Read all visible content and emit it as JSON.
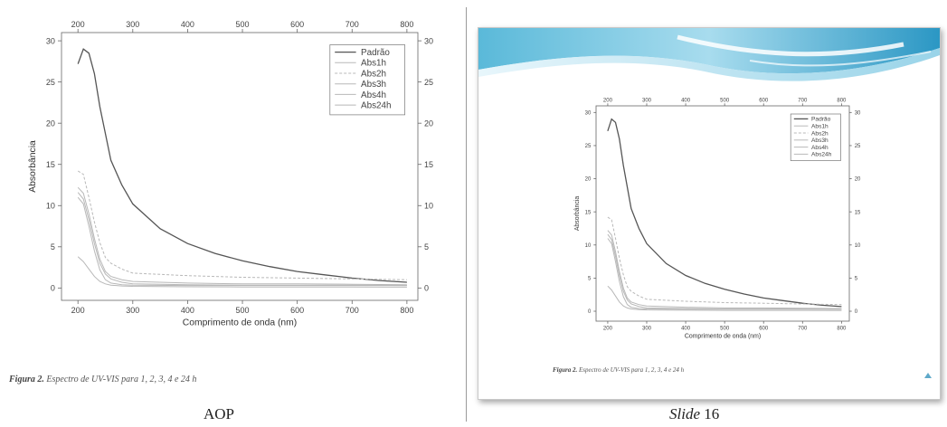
{
  "captions": {
    "left": {
      "figure_label": "Figura 2.",
      "text": "Espectro de UV-VIS para 1, 2, 3, 4 e 24 h"
    },
    "right": {
      "figure_label": "Figura 2.",
      "text": "Espectro de UV-VIS para 1, 2, 3, 4 e 24 h"
    }
  },
  "labels": {
    "left_panel": "AOP",
    "right_panel_italic": "Slide",
    "right_panel_number": "16"
  },
  "colors": {
    "slide_header_light": "#d6f0f8",
    "slide_header_mid": "#6cc3df",
    "slide_header_dark": "#1d8fbd",
    "series_main": "#555555",
    "series_light": "#b8b8b8"
  },
  "chart_data": [
    {
      "type": "line",
      "xlabel": "Comprimento de onda (nm)",
      "ylabel": "Absorbância",
      "xlim": [
        170,
        820
      ],
      "ylim": [
        -1.5,
        31
      ],
      "xticks": [
        200,
        300,
        400,
        500,
        600,
        700,
        800
      ],
      "yticks": [
        0,
        5,
        10,
        15,
        20,
        25,
        30
      ],
      "legend_position": "top-right",
      "series": [
        {
          "name": "Padrão",
          "x": [
            200,
            210,
            220,
            230,
            240,
            260,
            280,
            300,
            350,
            400,
            450,
            500,
            550,
            600,
            650,
            700,
            750,
            800
          ],
          "y": [
            27.2,
            29.0,
            28.5,
            26.0,
            22.0,
            15.5,
            12.5,
            10.2,
            7.2,
            5.4,
            4.2,
            3.3,
            2.6,
            2.0,
            1.6,
            1.2,
            0.9,
            0.7
          ]
        },
        {
          "name": "Abs1h",
          "x": [
            200,
            210,
            220,
            230,
            240,
            250,
            260,
            280,
            300,
            400,
            500,
            600,
            700,
            800
          ],
          "y": [
            3.8,
            3.2,
            2.3,
            1.4,
            0.8,
            0.5,
            0.35,
            0.25,
            0.2,
            0.15,
            0.12,
            0.12,
            0.12,
            0.1
          ]
        },
        {
          "name": "Abs2h",
          "x": [
            200,
            210,
            220,
            230,
            240,
            250,
            260,
            280,
            300,
            400,
            500,
            600,
            700,
            800
          ],
          "y": [
            14.2,
            13.8,
            11.0,
            8.0,
            5.5,
            3.7,
            3.0,
            2.3,
            1.8,
            1.5,
            1.3,
            1.2,
            1.1,
            1.0
          ]
        },
        {
          "name": "Abs3h",
          "x": [
            200,
            210,
            220,
            230,
            240,
            250,
            260,
            280,
            300,
            400,
            500,
            600,
            700,
            800
          ],
          "y": [
            12.2,
            11.5,
            9.0,
            6.0,
            3.5,
            2.0,
            1.4,
            1.0,
            0.8,
            0.6,
            0.5,
            0.5,
            0.45,
            0.4
          ]
        },
        {
          "name": "Abs4h",
          "x": [
            200,
            210,
            220,
            230,
            240,
            250,
            260,
            280,
            300,
            400,
            500,
            600,
            700,
            800
          ],
          "y": [
            11.6,
            10.8,
            8.3,
            5.4,
            3.0,
            1.7,
            1.1,
            0.7,
            0.5,
            0.4,
            0.35,
            0.35,
            0.35,
            0.3
          ]
        },
        {
          "name": "Abs24h",
          "x": [
            200,
            210,
            220,
            230,
            240,
            250,
            260,
            280,
            300,
            400,
            500,
            600,
            700,
            800
          ],
          "y": [
            11.0,
            10.2,
            7.5,
            4.5,
            2.2,
            1.0,
            0.6,
            0.4,
            0.35,
            0.3,
            0.3,
            0.3,
            0.3,
            0.3
          ]
        }
      ]
    },
    {
      "type": "line",
      "xlabel": "Comprimento de onda (nm)",
      "ylabel": "Absorbância",
      "xlim": [
        170,
        820
      ],
      "ylim": [
        -1.5,
        31
      ],
      "xticks": [
        200,
        300,
        400,
        500,
        600,
        700,
        800
      ],
      "yticks": [
        0,
        5,
        10,
        15,
        20,
        25,
        30
      ],
      "legend_position": "top-right",
      "series": [
        {
          "name": "Padrão",
          "x": [
            200,
            210,
            220,
            230,
            240,
            260,
            280,
            300,
            350,
            400,
            450,
            500,
            550,
            600,
            650,
            700,
            750,
            800
          ],
          "y": [
            27.2,
            29.0,
            28.5,
            26.0,
            22.0,
            15.5,
            12.5,
            10.2,
            7.2,
            5.4,
            4.2,
            3.3,
            2.6,
            2.0,
            1.6,
            1.2,
            0.9,
            0.7
          ]
        },
        {
          "name": "Abs1h",
          "x": [
            200,
            210,
            220,
            230,
            240,
            250,
            260,
            280,
            300,
            400,
            500,
            600,
            700,
            800
          ],
          "y": [
            3.8,
            3.2,
            2.3,
            1.4,
            0.8,
            0.5,
            0.35,
            0.25,
            0.2,
            0.15,
            0.12,
            0.12,
            0.12,
            0.1
          ]
        },
        {
          "name": "Abs2h",
          "x": [
            200,
            210,
            220,
            230,
            240,
            250,
            260,
            280,
            300,
            400,
            500,
            600,
            700,
            800
          ],
          "y": [
            14.2,
            13.8,
            11.0,
            8.0,
            5.5,
            3.7,
            3.0,
            2.3,
            1.8,
            1.5,
            1.3,
            1.2,
            1.1,
            1.0
          ]
        },
        {
          "name": "Abs3h",
          "x": [
            200,
            210,
            220,
            230,
            240,
            250,
            260,
            280,
            300,
            400,
            500,
            600,
            700,
            800
          ],
          "y": [
            12.2,
            11.5,
            9.0,
            6.0,
            3.5,
            2.0,
            1.4,
            1.0,
            0.8,
            0.6,
            0.5,
            0.5,
            0.45,
            0.4
          ]
        },
        {
          "name": "Abs4h",
          "x": [
            200,
            210,
            220,
            230,
            240,
            250,
            260,
            280,
            300,
            400,
            500,
            600,
            700,
            800
          ],
          "y": [
            11.6,
            10.8,
            8.3,
            5.4,
            3.0,
            1.7,
            1.1,
            0.7,
            0.5,
            0.4,
            0.35,
            0.35,
            0.35,
            0.3
          ]
        },
        {
          "name": "Abs24h",
          "x": [
            200,
            210,
            220,
            230,
            240,
            250,
            260,
            280,
            300,
            400,
            500,
            600,
            700,
            800
          ],
          "y": [
            11.0,
            10.2,
            7.5,
            4.5,
            2.2,
            1.0,
            0.6,
            0.4,
            0.35,
            0.3,
            0.3,
            0.3,
            0.3,
            0.3
          ]
        }
      ]
    }
  ]
}
